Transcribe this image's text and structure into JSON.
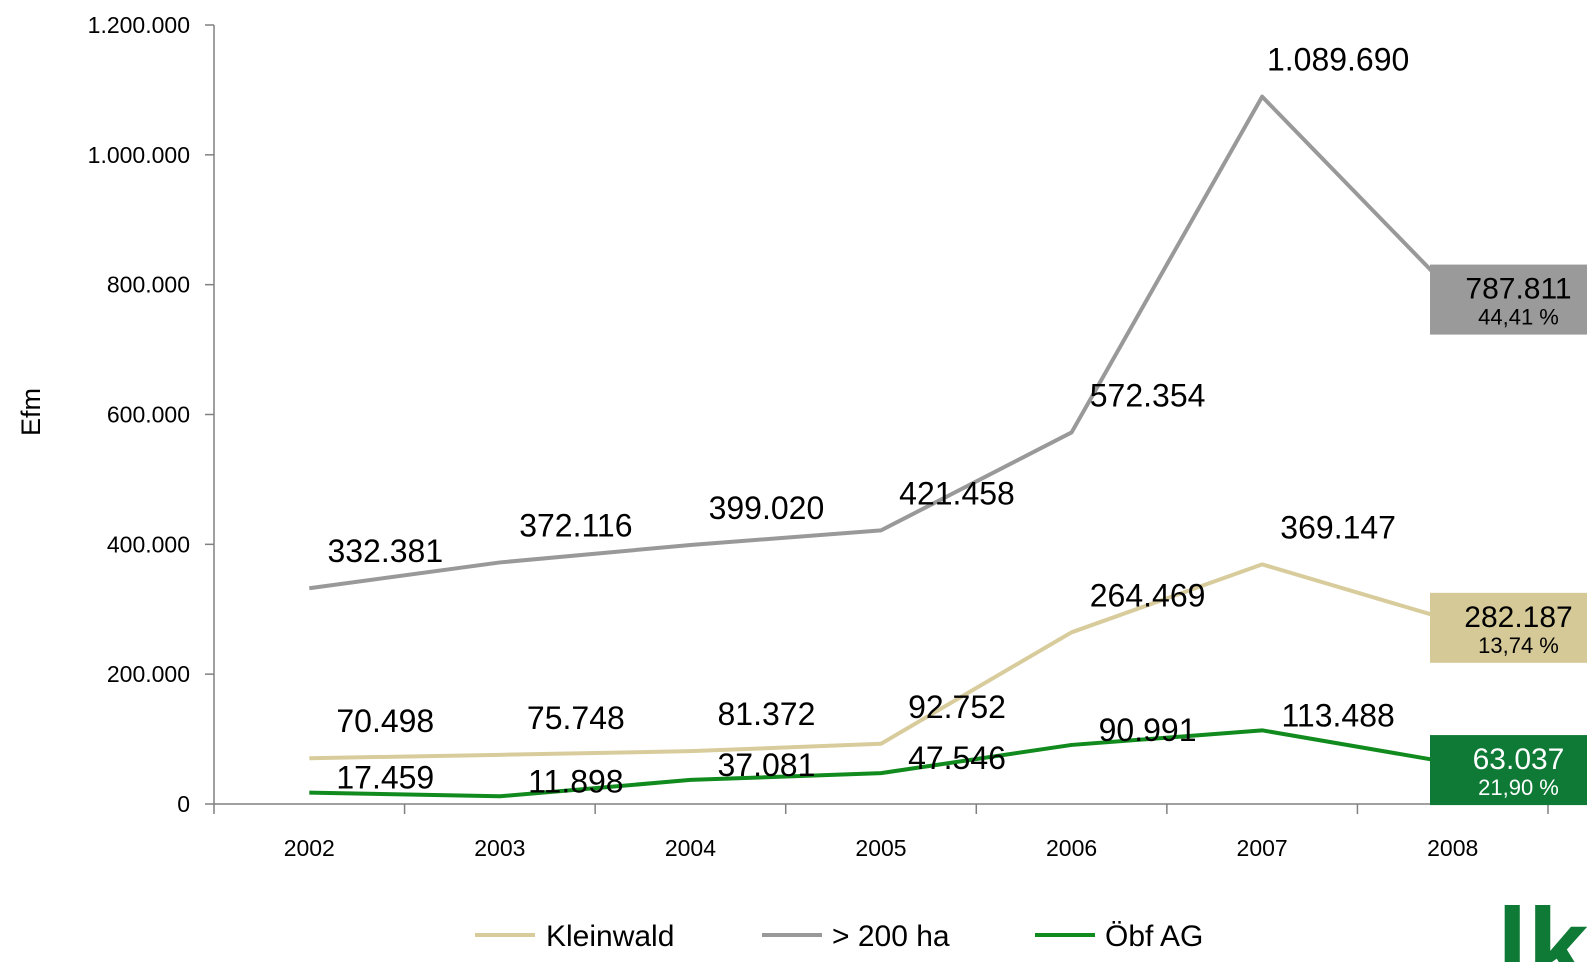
{
  "chart_data": {
    "type": "line",
    "ylabel": "Efm",
    "ylim": [
      0,
      1200000
    ],
    "y_ticks": [
      0,
      200000,
      400000,
      600000,
      800000,
      1000000,
      1200000
    ],
    "y_tick_labels": [
      "0",
      "200.000",
      "400.000",
      "600.000",
      "800.000",
      "1.000.000",
      "1.200.000"
    ],
    "categories": [
      "2002",
      "2003",
      "2004",
      "2005",
      "2006",
      "2007",
      "2008"
    ],
    "legend_position": "bottom",
    "grid": false,
    "series": [
      {
        "name": "Kleinwald",
        "color": "#d8cc9c",
        "end_box_color": "#d4c997",
        "end_text_color": "#000000",
        "values": [
          70498,
          75748,
          81372,
          92752,
          264469,
          369147,
          282187
        ],
        "labels": [
          "70.498",
          "75.748",
          "81.372",
          "92.752",
          "264.469",
          "369.147",
          "282.187"
        ],
        "end_share": "13,74 %"
      },
      {
        "name": "> 200 ha",
        "color": "#999999",
        "end_box_color": "#9a9a9a",
        "end_text_color": "#000000",
        "values": [
          332381,
          372116,
          399020,
          421458,
          572354,
          1089690,
          787811
        ],
        "labels": [
          "332.381",
          "372.116",
          "399.020",
          "421.458",
          "572.354",
          "1.089.690",
          "787.811"
        ],
        "end_share": "44,41 %"
      },
      {
        "name": "Öbf AG",
        "color": "#118a1e",
        "end_box_color": "#0e7a36",
        "end_text_color": "#ffffff",
        "values": [
          17459,
          11898,
          37081,
          47546,
          90991,
          113488,
          63037
        ],
        "labels": [
          "17.459",
          "11.898",
          "37.081",
          "47.546",
          "90.991",
          "113.488",
          "63.037"
        ],
        "end_share": "21,90 %"
      }
    ]
  },
  "logo": {
    "text": "lk",
    "color": "#0e7a36"
  }
}
